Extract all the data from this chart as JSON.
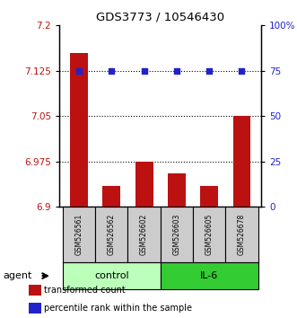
{
  "title": "GDS3773 / 10546430",
  "samples": [
    "GSM526561",
    "GSM526562",
    "GSM526602",
    "GSM526603",
    "GSM526605",
    "GSM526678"
  ],
  "bar_values": [
    7.155,
    6.935,
    6.975,
    6.955,
    6.935,
    7.05
  ],
  "percentile_values": [
    75,
    75,
    75,
    75,
    75,
    75
  ],
  "ylim_left": [
    6.9,
    7.2
  ],
  "ylim_right": [
    0,
    100
  ],
  "yticks_left": [
    6.9,
    6.975,
    7.05,
    7.125,
    7.2
  ],
  "ytick_labels_left": [
    "6.9",
    "6.975",
    "7.05",
    "7.125",
    "7.2"
  ],
  "yticks_right": [
    0,
    25,
    50,
    75,
    100
  ],
  "ytick_labels_right": [
    "0",
    "25",
    "50",
    "75",
    "100%"
  ],
  "hlines": [
    7.125,
    7.05,
    6.975
  ],
  "bar_color": "#BB1111",
  "dot_color": "#2222CC",
  "bar_bottom": 6.9,
  "groups": [
    {
      "label": "control",
      "indices": [
        0,
        1,
        2
      ],
      "color": "#BBFFBB"
    },
    {
      "label": "IL-6",
      "indices": [
        3,
        4,
        5
      ],
      "color": "#33CC33"
    }
  ],
  "agent_label": "agent",
  "legend_items": [
    {
      "color": "#BB1111",
      "label": "transformed count"
    },
    {
      "color": "#2222CC",
      "label": "percentile rank within the sample"
    }
  ]
}
